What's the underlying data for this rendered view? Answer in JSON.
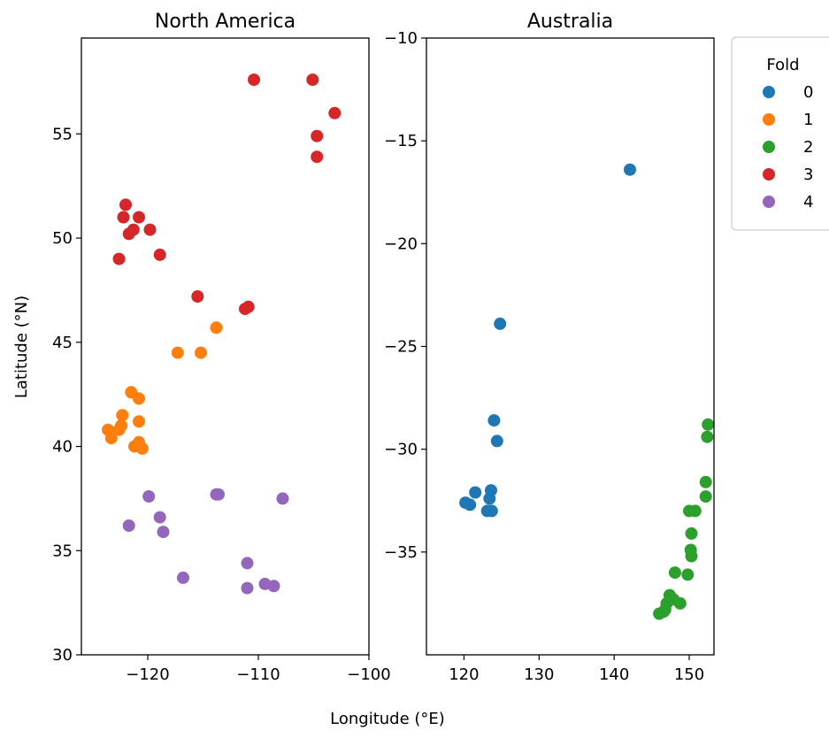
{
  "chart_data": {
    "type": "scatter",
    "xlabel": "Longitude (°E)",
    "ylabel": "Latitude (°N)",
    "legend": {
      "title": "Fold",
      "placement": "top-right, outside",
      "entries": [
        {
          "label": "0",
          "color": "#1f77b4"
        },
        {
          "label": "1",
          "color": "#ff7f0e"
        },
        {
          "label": "2",
          "color": "#2ca02c"
        },
        {
          "label": "3",
          "color": "#d62728"
        },
        {
          "label": "4",
          "color": "#9467bd"
        }
      ]
    },
    "grid": false,
    "panels": [
      {
        "title": "North America",
        "xlim": [
          -126,
          -100
        ],
        "ylim": [
          30,
          59.6
        ],
        "xticks": [
          -120,
          -110,
          -100
        ],
        "xtick_labels": [
          "−120",
          "−110",
          "−100"
        ],
        "yticks": [
          30,
          35,
          40,
          45,
          50,
          55
        ],
        "ytick_labels": [
          "30",
          "35",
          "40",
          "45",
          "50",
          "55"
        ],
        "series": [
          {
            "name": "1",
            "points": [
              [
                -121.5,
                42.6
              ],
              [
                -120.8,
                42.3
              ],
              [
                -122.3,
                41.5
              ],
              [
                -122.4,
                41.0
              ],
              [
                -122.6,
                40.8
              ],
              [
                -123.6,
                40.8
              ],
              [
                -123.3,
                40.4
              ],
              [
                -120.8,
                41.2
              ],
              [
                -121.2,
                40.0
              ],
              [
                -120.8,
                40.2
              ],
              [
                -120.5,
                39.9
              ],
              [
                -117.3,
                44.5
              ],
              [
                -115.2,
                44.5
              ],
              [
                -113.8,
                45.7
              ]
            ]
          },
          {
            "name": "3",
            "points": [
              [
                -110.4,
                57.6
              ],
              [
                -105.1,
                57.6
              ],
              [
                -103.1,
                56.0
              ],
              [
                -104.7,
                54.9
              ],
              [
                -104.7,
                53.9
              ],
              [
                -122.0,
                51.6
              ],
              [
                -122.2,
                51.0
              ],
              [
                -120.8,
                51.0
              ],
              [
                -121.7,
                50.2
              ],
              [
                -121.3,
                50.4
              ],
              [
                -119.8,
                50.4
              ],
              [
                -122.6,
                49.0
              ],
              [
                -118.9,
                49.2
              ],
              [
                -115.5,
                47.2
              ],
              [
                -111.2,
                46.6
              ],
              [
                -110.9,
                46.7
              ]
            ]
          },
          {
            "name": "4",
            "points": [
              [
                -119.9,
                37.6
              ],
              [
                -113.8,
                37.7
              ],
              [
                -113.6,
                37.7
              ],
              [
                -107.8,
                37.5
              ],
              [
                -121.7,
                36.2
              ],
              [
                -118.9,
                36.6
              ],
              [
                -118.6,
                35.9
              ],
              [
                -116.8,
                33.7
              ],
              [
                -111.0,
                34.4
              ],
              [
                -109.4,
                33.4
              ],
              [
                -108.6,
                33.3
              ],
              [
                -111.0,
                33.2
              ]
            ]
          }
        ]
      },
      {
        "title": "Australia",
        "xlim": [
          115,
          153.3
        ],
        "ylim": [
          -40,
          -10
        ],
        "xticks": [
          120,
          130,
          140,
          150
        ],
        "xtick_labels": [
          "120",
          "130",
          "140",
          "150"
        ],
        "yticks": [
          -10,
          -15,
          -20,
          -25,
          -30,
          -35
        ],
        "ytick_labels": [
          "−10",
          "−15",
          "−20",
          "−25",
          "−30",
          "−35"
        ],
        "series": [
          {
            "name": "0",
            "points": [
              [
                142.1,
                -16.4
              ],
              [
                124.8,
                -23.9
              ],
              [
                124.0,
                -28.6
              ],
              [
                124.4,
                -29.6
              ],
              [
                121.5,
                -32.1
              ],
              [
                123.6,
                -32.0
              ],
              [
                123.4,
                -32.4
              ],
              [
                120.2,
                -32.6
              ],
              [
                120.8,
                -32.7
              ],
              [
                123.1,
                -33.0
              ],
              [
                123.7,
                -33.0
              ]
            ]
          },
          {
            "name": "2",
            "points": [
              [
                152.5,
                -28.8
              ],
              [
                152.4,
                -29.4
              ],
              [
                152.2,
                -31.6
              ],
              [
                152.2,
                -32.3
              ],
              [
                150.0,
                -33.0
              ],
              [
                150.8,
                -33.0
              ],
              [
                150.3,
                -34.1
              ],
              [
                150.2,
                -34.9
              ],
              [
                150.3,
                -35.2
              ],
              [
                149.8,
                -36.1
              ],
              [
                148.1,
                -36.0
              ],
              [
                147.4,
                -37.1
              ],
              [
                147.9,
                -37.3
              ],
              [
                147.0,
                -37.5
              ],
              [
                146.8,
                -37.8
              ],
              [
                146.6,
                -37.9
              ],
              [
                148.8,
                -37.5
              ],
              [
                146.0,
                -38.0
              ]
            ]
          }
        ]
      }
    ]
  }
}
